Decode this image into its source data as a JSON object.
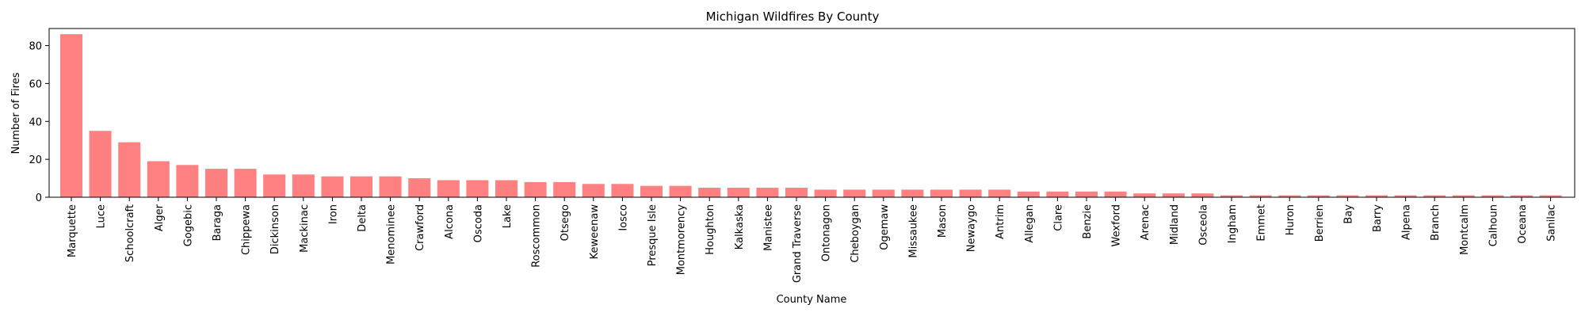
{
  "chart_data": {
    "type": "bar",
    "title": "Michigan Wildfires By County",
    "xlabel": "County Name",
    "ylabel": "Number of Fires",
    "ylim": [
      0,
      89
    ],
    "yticks": [
      0,
      20,
      40,
      60,
      80
    ],
    "grid": false,
    "bar_color": "#ff8080",
    "categories": [
      "Marquette",
      "Luce",
      "Schoolcraft",
      "Alger",
      "Gogebic",
      "Baraga",
      "Chippewa",
      "Dickinson",
      "Mackinac",
      "Iron",
      "Delta",
      "Menominee",
      "Crawford",
      "Alcona",
      "Oscoda",
      "Lake",
      "Roscommon",
      "Otsego",
      "Keweenaw",
      "Iosco",
      "Presque Isle",
      "Montmorency",
      "Houghton",
      "Kalkaska",
      "Manistee",
      "Grand Traverse",
      "Ontonagon",
      "Cheboygan",
      "Ogemaw",
      "Missaukee",
      "Mason",
      "Newaygo",
      "Antrim",
      "Allegan",
      "Clare",
      "Benzie",
      "Wexford",
      "Arenac",
      "Midland",
      "Osceola",
      "Ingham",
      "Emmet",
      "Huron",
      "Berrien",
      "Bay",
      "Barry",
      "Alpena",
      "Branch",
      "Montcalm",
      "Calhoun",
      "Oceana",
      "Sanilac"
    ],
    "values": [
      86,
      35,
      29,
      19,
      17,
      15,
      15,
      12,
      12,
      11,
      11,
      11,
      10,
      9,
      9,
      9,
      8,
      8,
      7,
      7,
      6,
      6,
      5,
      5,
      5,
      5,
      4,
      4,
      4,
      4,
      4,
      4,
      4,
      3,
      3,
      3,
      3,
      2,
      2,
      2,
      1,
      1,
      1,
      1,
      1,
      1,
      1,
      1,
      1,
      1,
      1,
      1
    ]
  }
}
